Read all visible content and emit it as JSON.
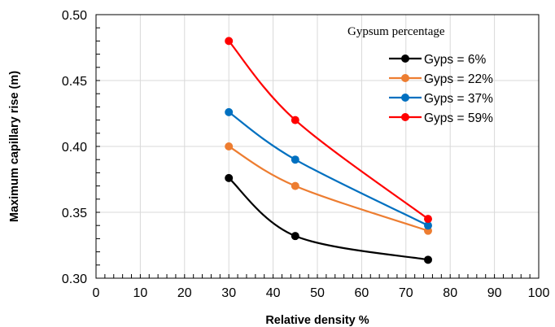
{
  "chart_data": {
    "type": "line",
    "xlabel": "Relative density %",
    "ylabel": "Maximum capillary rise (m)",
    "xlim": [
      0,
      100
    ],
    "ylim": [
      0.3,
      0.5
    ],
    "x_ticks": [
      0,
      10,
      20,
      30,
      40,
      50,
      60,
      70,
      80,
      90,
      100
    ],
    "y_ticks": [
      "0.30",
      "0.35",
      "0.40",
      "0.45",
      "0.50"
    ],
    "grid": true,
    "legend": {
      "title": "Gypsum percentage",
      "placement": "top-right"
    },
    "x": [
      30,
      45,
      75
    ],
    "series": [
      {
        "name": "Gyps = 6%",
        "color": "#000000",
        "values": [
          0.376,
          0.332,
          0.314
        ]
      },
      {
        "name": "Gyps = 22%",
        "color": "#ED7D31",
        "values": [
          0.4,
          0.37,
          0.336
        ]
      },
      {
        "name": "Gyps = 37%",
        "color": "#0070C0",
        "values": [
          0.426,
          0.39,
          0.34
        ]
      },
      {
        "name": "Gyps = 59%",
        "color": "#FF0000",
        "values": [
          0.48,
          0.42,
          0.345
        ]
      }
    ]
  }
}
